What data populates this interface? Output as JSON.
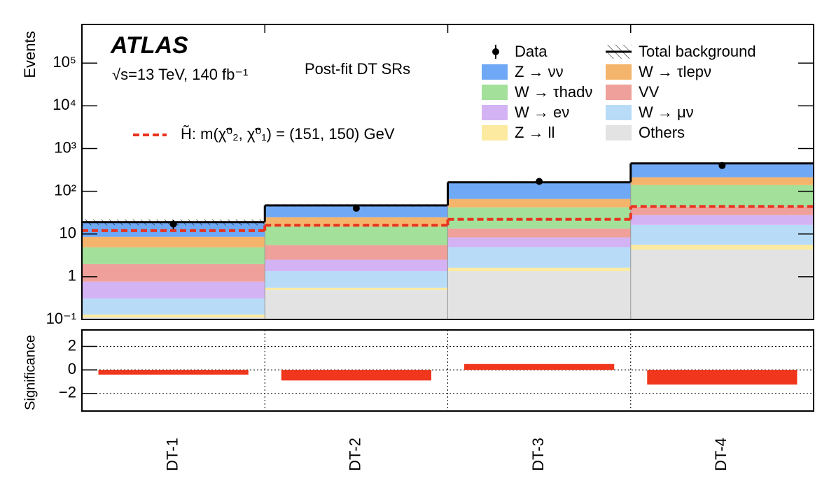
{
  "header": {
    "experiment": "ATLAS",
    "energy": "√s=13 TeV, 140 fb⁻¹",
    "region": "Post-fit DT SRs"
  },
  "chart_data": [
    {
      "type": "stacked-histogram",
      "ylabel": "Events",
      "log_scale": true,
      "categories": [
        "DT-1",
        "DT-2",
        "DT-3",
        "DT-4"
      ],
      "ylim": [
        0.1,
        800000
      ],
      "yticks": [
        {
          "value": 0.1,
          "label": "10⁻¹"
        },
        1,
        10,
        {
          "value": 100,
          "label": "10²"
        },
        {
          "value": 1000,
          "label": "10³"
        },
        {
          "value": 10000,
          "label": "10⁴"
        },
        {
          "value": 100000,
          "label": "10⁵"
        }
      ],
      "data": {
        "name": "Data",
        "values": [
          17,
          40,
          170,
          400
        ],
        "errors": [
          4,
          6,
          13,
          20
        ]
      },
      "total": {
        "name": "Total background",
        "uncertainty": [
          3,
          3,
          8,
          20
        ]
      },
      "series": [
        {
          "name": "Z → νν",
          "color": "#6fa8f5",
          "values": [
            10.4,
            22,
            96,
            237
          ]
        },
        {
          "name": "W → τlepν",
          "color": "#f5b46b",
          "values": [
            3.7,
            9.6,
            24,
            73
          ]
        },
        {
          "name": "W → τhadν",
          "color": "#a3e09a",
          "values": [
            2.9,
            9.5,
            28.6,
            96
          ]
        },
        {
          "name": "VV",
          "color": "#f0a09a",
          "values": [
            1.2,
            3.0,
            5.1,
            15.9
          ]
        },
        {
          "name": "W → eν",
          "color": "#d4b3f5",
          "values": [
            0.46,
            1.15,
            3.4,
            11.4
          ]
        },
        {
          "name": "W → μν",
          "color": "#b8dcf7",
          "values": [
            0.18,
            0.8,
            3.3,
            10.7
          ]
        },
        {
          "name": "Z → ll",
          "color": "#fbeaa0",
          "values": [
            0.018,
            0.06,
            0.28,
            1.3
          ]
        },
        {
          "name": "Others",
          "color": "#e3e3e3",
          "values": [
            0.112,
            0.49,
            1.35,
            4.3
          ]
        }
      ],
      "signal": {
        "name": "H̃: m(χ̃⁰₂, χ̃⁰₁) = (151, 150) GeV",
        "color": "#e8331f",
        "values": [
          12,
          16,
          22,
          44
        ]
      }
    },
    {
      "type": "bar",
      "ylabel": "Significance",
      "color": "#f0361c",
      "categories": [
        "DT-1",
        "DT-2",
        "DT-3",
        "DT-4"
      ],
      "values": [
        -0.4,
        -0.9,
        0.5,
        -1.25
      ],
      "ylim": [
        -3.5,
        3.4
      ],
      "yticks": [
        {
          "value": -2,
          "label": "−2"
        },
        0,
        2
      ],
      "grid": true
    }
  ]
}
